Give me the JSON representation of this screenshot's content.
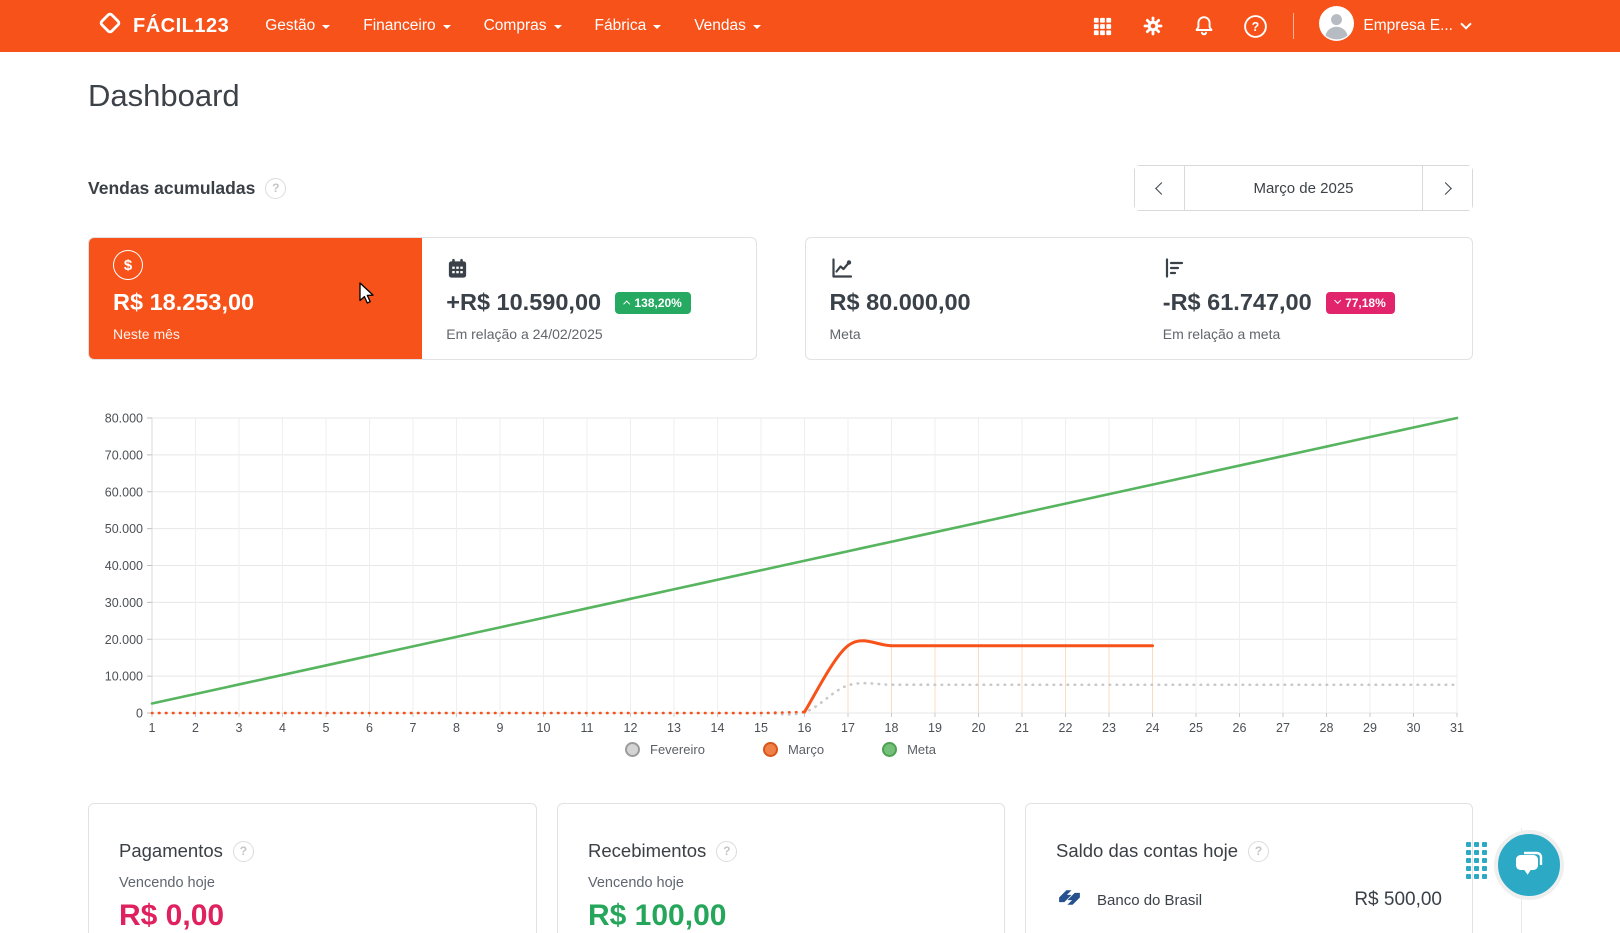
{
  "colors": {
    "primary_orange": "#f6521a",
    "badge_green": "#26a961",
    "badge_pink": "#e1246b",
    "value_pink": "#e0215f",
    "value_green": "#26a65b",
    "meta_line_green": "#57b45f",
    "february_line_gray": "#c9c9c9",
    "chat_teal": "#2ba9c5",
    "bank_logo_navy": "#27508f"
  },
  "navbar": {
    "brand": "FÁCIL123",
    "menus": [
      {
        "label": "Gestão"
      },
      {
        "label": "Financeiro"
      },
      {
        "label": "Compras"
      },
      {
        "label": "Fábrica"
      },
      {
        "label": "Vendas"
      }
    ],
    "icons": [
      "apps-grid",
      "settings-gear",
      "notifications-bell",
      "help"
    ],
    "user_label": "Empresa E..."
  },
  "page": {
    "title": "Dashboard"
  },
  "sales": {
    "title": "Vendas acumuladas",
    "period_label": "Março de 2025"
  },
  "stats": {
    "current": {
      "value": "R$ 18.253,00",
      "label": "Neste mês"
    },
    "comparison": {
      "value": "+R$ 10.590,00",
      "badge": "138,20%",
      "direction": "up",
      "subtitle": "Em relação a 24/02/2025"
    },
    "goal": {
      "value": "R$ 80.000,00",
      "label": "Meta"
    },
    "goal_gap": {
      "value": "-R$ 61.747,00",
      "badge": "77,18%",
      "direction": "down",
      "subtitle": "Em relação a meta"
    }
  },
  "chart_data": {
    "type": "line",
    "x": [
      1,
      2,
      3,
      4,
      5,
      6,
      7,
      8,
      9,
      10,
      11,
      12,
      13,
      14,
      15,
      16,
      17,
      18,
      19,
      20,
      21,
      22,
      23,
      24,
      25,
      26,
      27,
      28,
      29,
      30,
      31
    ],
    "ylim": [
      0,
      80000
    ],
    "y_ticks": [
      0,
      10000,
      20000,
      30000,
      40000,
      50000,
      60000,
      70000,
      80000
    ],
    "y_tick_labels": [
      "0",
      "10.000",
      "20.000",
      "30.000",
      "40.000",
      "50.000",
      "60.000",
      "70.000",
      "80.000"
    ],
    "grid": true,
    "legend_position": "bottom",
    "series": [
      {
        "name": "Fevereiro",
        "color": "#c9c9c9",
        "style": "dotted",
        "values": [
          0,
          0,
          0,
          0,
          0,
          0,
          0,
          0,
          0,
          0,
          0,
          0,
          0,
          0,
          0,
          200,
          7500,
          7663,
          7663,
          7663,
          7663,
          7663,
          7663,
          7663,
          7663,
          7663,
          7663,
          7663,
          7663,
          7663,
          7663
        ]
      },
      {
        "name": "Março",
        "color": "#f6521a",
        "style": "dotted-then-solid",
        "solid_from_day": 16,
        "values": [
          0,
          0,
          0,
          0,
          0,
          0,
          0,
          0,
          0,
          0,
          0,
          0,
          0,
          0,
          0,
          300,
          18253,
          18253,
          18253,
          18253,
          18253,
          18253,
          18253,
          18253,
          null,
          null,
          null,
          null,
          null,
          null,
          null
        ]
      },
      {
        "name": "Meta",
        "color": "#57b45f",
        "style": "solid",
        "values": [
          2581,
          5161,
          7742,
          10323,
          12903,
          15484,
          18065,
          20645,
          23226,
          25806,
          28387,
          30968,
          33548,
          36129,
          38710,
          41290,
          43871,
          46452,
          49032,
          51613,
          54194,
          56774,
          59355,
          61935,
          64516,
          67097,
          69677,
          72258,
          74839,
          77419,
          80000
        ]
      }
    ],
    "legend": [
      {
        "label": "Fevereiro",
        "fill": "#d4d4d4",
        "border": "#9b9b9b"
      },
      {
        "label": "Março",
        "fill": "#ef8049",
        "border": "#d9551a"
      },
      {
        "label": "Meta",
        "fill": "#74c078",
        "border": "#4da152"
      }
    ],
    "highlight_drop_lines": {
      "series": "Março",
      "days": [
        17,
        18,
        19,
        20,
        21,
        22,
        23,
        24
      ],
      "color": "#f8dcc3"
    }
  },
  "bottom_cards": {
    "pagamentos": {
      "title": "Pagamentos",
      "subtitle": "Vencendo hoje",
      "value": "R$ 0,00"
    },
    "recebimentos": {
      "title": "Recebimentos",
      "subtitle": "Vencendo hoje",
      "value": "R$ 100,00"
    },
    "saldo": {
      "title": "Saldo das contas hoje",
      "accounts": [
        {
          "bank": "Banco do Brasil",
          "balance": "R$ 500,00"
        }
      ]
    }
  }
}
